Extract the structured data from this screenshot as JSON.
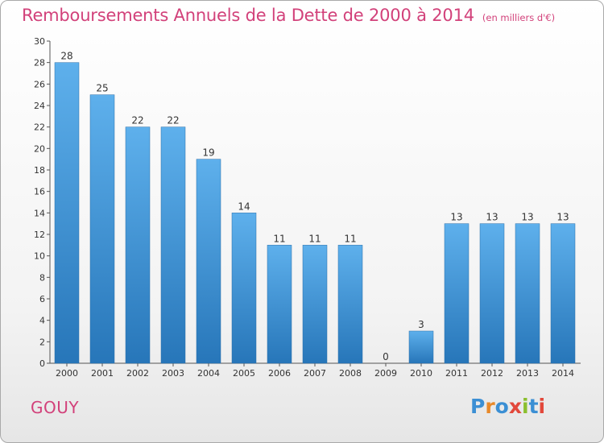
{
  "chart_data": {
    "type": "bar",
    "title": "Remboursements Annuels de la Dette de 2000 à 2014",
    "subtitle": "(en milliers d'€)",
    "categories": [
      "2000",
      "2001",
      "2002",
      "2003",
      "2004",
      "2005",
      "2006",
      "2007",
      "2008",
      "2009",
      "2010",
      "2011",
      "2012",
      "2013",
      "2014"
    ],
    "values": [
      28,
      25,
      22,
      22,
      19,
      14,
      11,
      11,
      11,
      0,
      3,
      13,
      13,
      13,
      13
    ],
    "ylim": [
      0,
      30
    ],
    "yticks": [
      0,
      2,
      4,
      6,
      8,
      10,
      12,
      14,
      16,
      18,
      20,
      22,
      24,
      26,
      28,
      30
    ],
    "grid": false,
    "colors": {
      "bar_light": "#5aa9e6",
      "bar_dark": "#2a7cc0",
      "title": "#d2417a"
    }
  },
  "footer": {
    "city": "GOUY",
    "logo_text": "Proxiti",
    "logo_colors": [
      "#3b8fd4",
      "#e8892a",
      "#3b8fd4",
      "#e2483b",
      "#8bbf2e",
      "#3b8fd4",
      "#e2483b"
    ]
  }
}
